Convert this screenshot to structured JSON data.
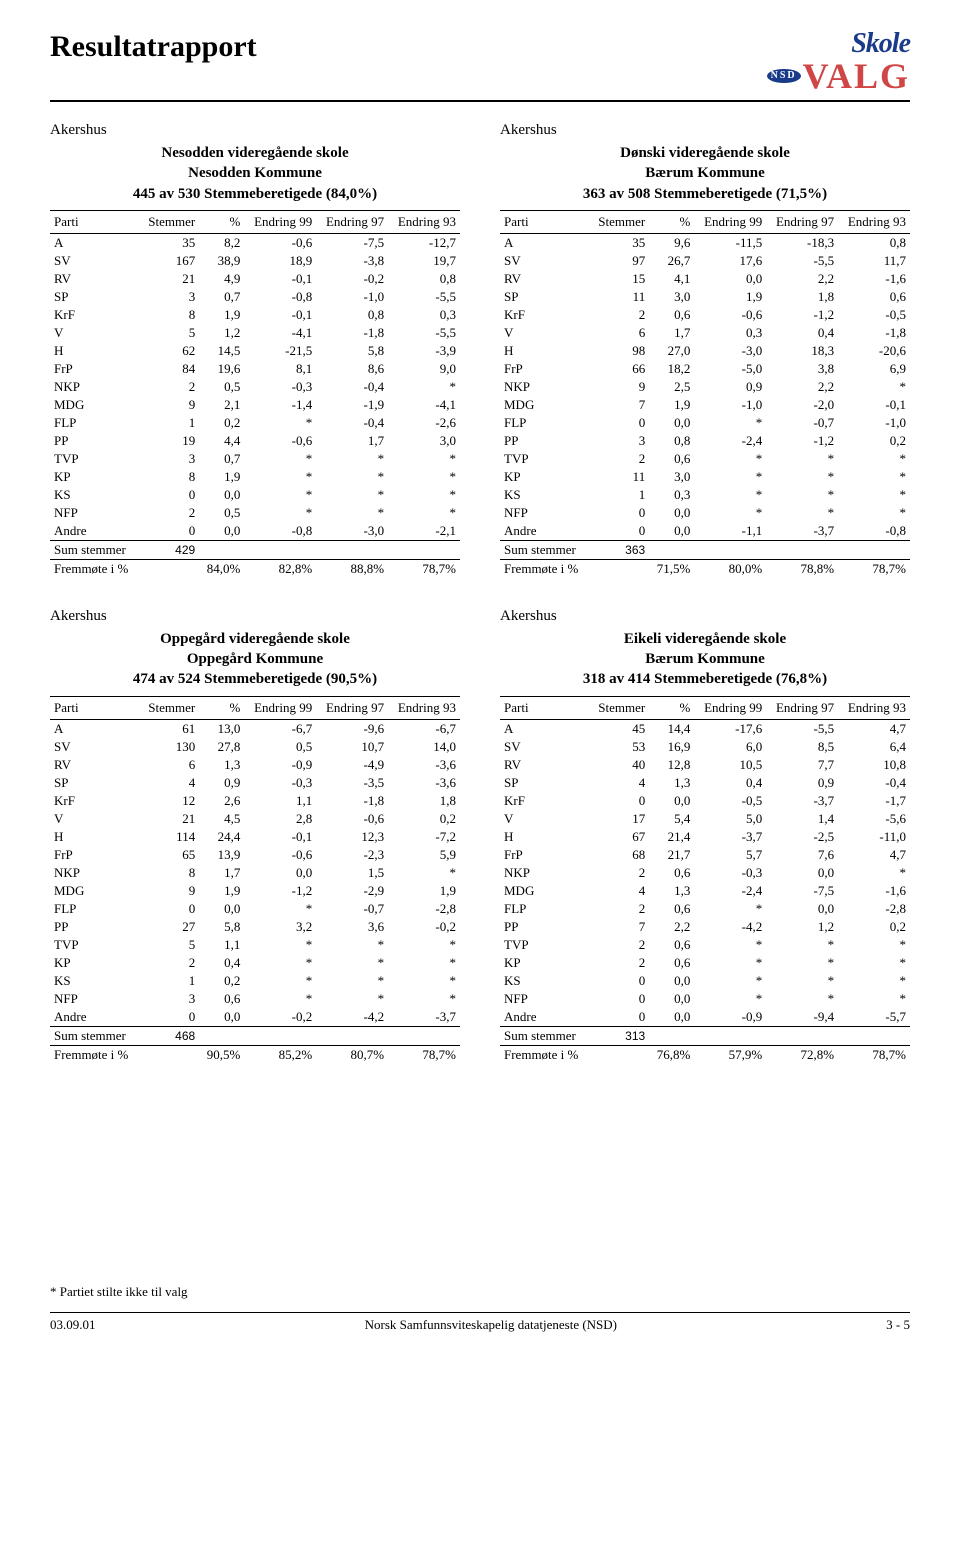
{
  "header": {
    "title": "Resultatrapport",
    "logo_top": "Skole",
    "logo_bottom": "VALG",
    "logo_badge": "NSD"
  },
  "labels": {
    "party": "Parti",
    "votes": "Stemmer",
    "pct": "%",
    "e99": "Endring 99",
    "e97": "Endring 97",
    "e93": "Endring 93",
    "sum": "Sum stemmer",
    "turnout": "Fremmøte i %"
  },
  "footnote": "* Partiet stilte ikke til valg",
  "footer": {
    "left": "03.09.01",
    "center": "Norsk Samfunnsviteskapelig datatjeneste (NSD)",
    "right": "3 - 5"
  },
  "tables": [
    {
      "region": "Akershus",
      "school": "Nesodden videregående skole",
      "municipality": "Nesodden Kommune",
      "eligible": "445 av 530 Stemmeberetigede (84,0%)",
      "sum": "429",
      "turnout": [
        "84,0%",
        "82,8%",
        "88,8%",
        "78,7%"
      ],
      "rows": [
        [
          "A",
          "35",
          "8,2",
          "-0,6",
          "-7,5",
          "-12,7"
        ],
        [
          "SV",
          "167",
          "38,9",
          "18,9",
          "-3,8",
          "19,7"
        ],
        [
          "RV",
          "21",
          "4,9",
          "-0,1",
          "-0,2",
          "0,8"
        ],
        [
          "SP",
          "3",
          "0,7",
          "-0,8",
          "-1,0",
          "-5,5"
        ],
        [
          "KrF",
          "8",
          "1,9",
          "-0,1",
          "0,8",
          "0,3"
        ],
        [
          "V",
          "5",
          "1,2",
          "-4,1",
          "-1,8",
          "-5,5"
        ],
        [
          "H",
          "62",
          "14,5",
          "-21,5",
          "5,8",
          "-3,9"
        ],
        [
          "FrP",
          "84",
          "19,6",
          "8,1",
          "8,6",
          "9,0"
        ],
        [
          "NKP",
          "2",
          "0,5",
          "-0,3",
          "-0,4",
          "*"
        ],
        [
          "MDG",
          "9",
          "2,1",
          "-1,4",
          "-1,9",
          "-4,1"
        ],
        [
          "FLP",
          "1",
          "0,2",
          "*",
          "-0,4",
          "-2,6"
        ],
        [
          "PP",
          "19",
          "4,4",
          "-0,6",
          "1,7",
          "3,0"
        ],
        [
          "TVP",
          "3",
          "0,7",
          "*",
          "*",
          "*"
        ],
        [
          "KP",
          "8",
          "1,9",
          "*",
          "*",
          "*"
        ],
        [
          "KS",
          "0",
          "0,0",
          "*",
          "*",
          "*"
        ],
        [
          "NFP",
          "2",
          "0,5",
          "*",
          "*",
          "*"
        ],
        [
          "Andre",
          "0",
          "0,0",
          "-0,8",
          "-3,0",
          "-2,1"
        ]
      ]
    },
    {
      "region": "Akershus",
      "school": "Dønski videregående skole",
      "municipality": "Bærum Kommune",
      "eligible": "363 av 508 Stemmeberetigede (71,5%)",
      "sum": "363",
      "turnout": [
        "71,5%",
        "80,0%",
        "78,8%",
        "78,7%"
      ],
      "rows": [
        [
          "A",
          "35",
          "9,6",
          "-11,5",
          "-18,3",
          "0,8"
        ],
        [
          "SV",
          "97",
          "26,7",
          "17,6",
          "-5,5",
          "11,7"
        ],
        [
          "RV",
          "15",
          "4,1",
          "0,0",
          "2,2",
          "-1,6"
        ],
        [
          "SP",
          "11",
          "3,0",
          "1,9",
          "1,8",
          "0,6"
        ],
        [
          "KrF",
          "2",
          "0,6",
          "-0,6",
          "-1,2",
          "-0,5"
        ],
        [
          "V",
          "6",
          "1,7",
          "0,3",
          "0,4",
          "-1,8"
        ],
        [
          "H",
          "98",
          "27,0",
          "-3,0",
          "18,3",
          "-20,6"
        ],
        [
          "FrP",
          "66",
          "18,2",
          "-5,0",
          "3,8",
          "6,9"
        ],
        [
          "NKP",
          "9",
          "2,5",
          "0,9",
          "2,2",
          "*"
        ],
        [
          "MDG",
          "7",
          "1,9",
          "-1,0",
          "-2,0",
          "-0,1"
        ],
        [
          "FLP",
          "0",
          "0,0",
          "*",
          "-0,7",
          "-1,0"
        ],
        [
          "PP",
          "3",
          "0,8",
          "-2,4",
          "-1,2",
          "0,2"
        ],
        [
          "TVP",
          "2",
          "0,6",
          "*",
          "*",
          "*"
        ],
        [
          "KP",
          "11",
          "3,0",
          "*",
          "*",
          "*"
        ],
        [
          "KS",
          "1",
          "0,3",
          "*",
          "*",
          "*"
        ],
        [
          "NFP",
          "0",
          "0,0",
          "*",
          "*",
          "*"
        ],
        [
          "Andre",
          "0",
          "0,0",
          "-1,1",
          "-3,7",
          "-0,8"
        ]
      ]
    },
    {
      "region": "Akershus",
      "school": "Oppegård videregående skole",
      "municipality": "Oppegård Kommune",
      "eligible": "474 av 524 Stemmeberetigede (90,5%)",
      "sum": "468",
      "turnout": [
        "90,5%",
        "85,2%",
        "80,7%",
        "78,7%"
      ],
      "rows": [
        [
          "A",
          "61",
          "13,0",
          "-6,7",
          "-9,6",
          "-6,7"
        ],
        [
          "SV",
          "130",
          "27,8",
          "0,5",
          "10,7",
          "14,0"
        ],
        [
          "RV",
          "6",
          "1,3",
          "-0,9",
          "-4,9",
          "-3,6"
        ],
        [
          "SP",
          "4",
          "0,9",
          "-0,3",
          "-3,5",
          "-3,6"
        ],
        [
          "KrF",
          "12",
          "2,6",
          "1,1",
          "-1,8",
          "1,8"
        ],
        [
          "V",
          "21",
          "4,5",
          "2,8",
          "-0,6",
          "0,2"
        ],
        [
          "H",
          "114",
          "24,4",
          "-0,1",
          "12,3",
          "-7,2"
        ],
        [
          "FrP",
          "65",
          "13,9",
          "-0,6",
          "-2,3",
          "5,9"
        ],
        [
          "NKP",
          "8",
          "1,7",
          "0,0",
          "1,5",
          "*"
        ],
        [
          "MDG",
          "9",
          "1,9",
          "-1,2",
          "-2,9",
          "1,9"
        ],
        [
          "FLP",
          "0",
          "0,0",
          "*",
          "-0,7",
          "-2,8"
        ],
        [
          "PP",
          "27",
          "5,8",
          "3,2",
          "3,6",
          "-0,2"
        ],
        [
          "TVP",
          "5",
          "1,1",
          "*",
          "*",
          "*"
        ],
        [
          "KP",
          "2",
          "0,4",
          "*",
          "*",
          "*"
        ],
        [
          "KS",
          "1",
          "0,2",
          "*",
          "*",
          "*"
        ],
        [
          "NFP",
          "3",
          "0,6",
          "*",
          "*",
          "*"
        ],
        [
          "Andre",
          "0",
          "0,0",
          "-0,2",
          "-4,2",
          "-3,7"
        ]
      ]
    },
    {
      "region": "Akershus",
      "school": "Eikeli videregående skole",
      "municipality": "Bærum Kommune",
      "eligible": "318 av 414 Stemmeberetigede (76,8%)",
      "sum": "313",
      "turnout": [
        "76,8%",
        "57,9%",
        "72,8%",
        "78,7%"
      ],
      "rows": [
        [
          "A",
          "45",
          "14,4",
          "-17,6",
          "-5,5",
          "4,7"
        ],
        [
          "SV",
          "53",
          "16,9",
          "6,0",
          "8,5",
          "6,4"
        ],
        [
          "RV",
          "40",
          "12,8",
          "10,5",
          "7,7",
          "10,8"
        ],
        [
          "SP",
          "4",
          "1,3",
          "0,4",
          "0,9",
          "-0,4"
        ],
        [
          "KrF",
          "0",
          "0,0",
          "-0,5",
          "-3,7",
          "-1,7"
        ],
        [
          "V",
          "17",
          "5,4",
          "5,0",
          "1,4",
          "-5,6"
        ],
        [
          "H",
          "67",
          "21,4",
          "-3,7",
          "-2,5",
          "-11,0"
        ],
        [
          "FrP",
          "68",
          "21,7",
          "5,7",
          "7,6",
          "4,7"
        ],
        [
          "NKP",
          "2",
          "0,6",
          "-0,3",
          "0,0",
          "*"
        ],
        [
          "MDG",
          "4",
          "1,3",
          "-2,4",
          "-7,5",
          "-1,6"
        ],
        [
          "FLP",
          "2",
          "0,6",
          "*",
          "0,0",
          "-2,8"
        ],
        [
          "PP",
          "7",
          "2,2",
          "-4,2",
          "1,2",
          "0,2"
        ],
        [
          "TVP",
          "2",
          "0,6",
          "*",
          "*",
          "*"
        ],
        [
          "KP",
          "2",
          "0,6",
          "*",
          "*",
          "*"
        ],
        [
          "KS",
          "0",
          "0,0",
          "*",
          "*",
          "*"
        ],
        [
          "NFP",
          "0",
          "0,0",
          "*",
          "*",
          "*"
        ],
        [
          "Andre",
          "0",
          "0,0",
          "-0,9",
          "-9,4",
          "-5,7"
        ]
      ]
    }
  ]
}
